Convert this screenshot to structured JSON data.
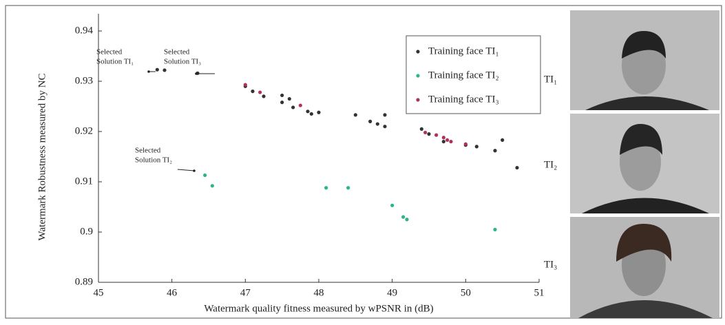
{
  "chart_data": {
    "type": "scatter",
    "x_label": "Watermark quality fitness measured by wPSNR in (dB)",
    "y_label": "Watermark Robustness measured by NC",
    "xlim": [
      45,
      51
    ],
    "xticks": [
      45,
      46,
      47,
      48,
      49,
      50,
      51
    ],
    "ylim": [
      0.89,
      0.94
    ],
    "yticks": [
      0.89,
      0.9,
      0.91,
      0.92,
      0.93,
      0.94
    ],
    "legend": "upper right",
    "series": [
      {
        "name": "Training face TI₁",
        "color": "#333333",
        "x": [
          45.8,
          45.9,
          46.35,
          47.0,
          47.1,
          47.25,
          47.5,
          47.5,
          47.6,
          47.65,
          47.85,
          47.9,
          48.0,
          48.5,
          48.7,
          48.8,
          48.9,
          48.9,
          49.4,
          49.5,
          49.7,
          50.0,
          50.15,
          50.4,
          50.5,
          50.7
        ],
        "y": [
          0.9323,
          0.9322,
          0.9316,
          0.929,
          0.928,
          0.927,
          0.9272,
          0.9258,
          0.9265,
          0.9248,
          0.924,
          0.9235,
          0.9238,
          0.9233,
          0.922,
          0.9215,
          0.921,
          0.9233,
          0.9205,
          0.9195,
          0.918,
          0.9173,
          0.917,
          0.9162,
          0.9183,
          0.9128
        ]
      },
      {
        "name": "Training face TI₂",
        "color": "#2fb38c",
        "x": [
          46.45,
          46.55,
          48.1,
          48.4,
          49.0,
          49.15,
          49.2,
          50.4
        ],
        "y": [
          0.9113,
          0.9092,
          0.9088,
          0.9088,
          0.9053,
          0.903,
          0.9025,
          0.9005
        ]
      },
      {
        "name": "Training face TI₃",
        "color": "#b03060",
        "x": [
          47.0,
          47.2,
          47.75,
          49.45,
          49.6,
          49.7,
          49.75,
          49.8,
          50.0
        ],
        "y": [
          0.9293,
          0.9278,
          0.9252,
          0.9198,
          0.9193,
          0.9188,
          0.9183,
          0.918,
          0.9175
        ]
      }
    ],
    "annotations": [
      {
        "lines": [
          "Selected",
          "Solution TI₁"
        ]
      },
      {
        "lines": [
          "Selected",
          "Solution TI₃"
        ]
      },
      {
        "lines": [
          "Selected",
          "Solution TI₂"
        ]
      }
    ],
    "face_labels": [
      "TI₁",
      "TI₂",
      "TI₃"
    ]
  }
}
